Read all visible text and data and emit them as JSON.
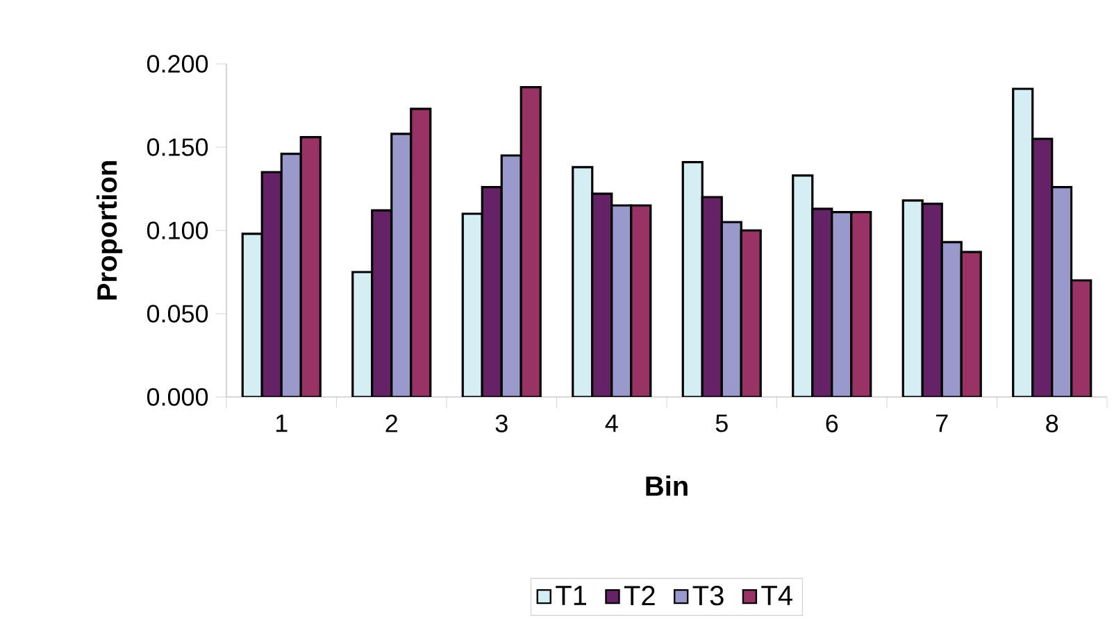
{
  "chart_data": {
    "type": "bar",
    "xlabel": "Bin",
    "ylabel": "Proportion",
    "categories": [
      "1",
      "2",
      "3",
      "4",
      "5",
      "6",
      "7",
      "8"
    ],
    "series": [
      {
        "name": "T1",
        "color": "#d4eef4",
        "values": [
          0.098,
          0.075,
          0.11,
          0.138,
          0.141,
          0.133,
          0.118,
          0.185
        ]
      },
      {
        "name": "T2",
        "color": "#662266",
        "values": [
          0.135,
          0.112,
          0.126,
          0.122,
          0.12,
          0.113,
          0.116,
          0.155
        ]
      },
      {
        "name": "T3",
        "color": "#9999cc",
        "values": [
          0.146,
          0.158,
          0.145,
          0.115,
          0.105,
          0.111,
          0.093,
          0.126
        ]
      },
      {
        "name": "T4",
        "color": "#993366",
        "values": [
          0.156,
          0.173,
          0.186,
          0.115,
          0.1,
          0.111,
          0.087,
          0.07
        ]
      }
    ],
    "ylim": [
      0,
      0.2
    ],
    "yticks": [
      {
        "value": 0,
        "label": "0.000"
      },
      {
        "value": 0.05,
        "label": "0.050"
      },
      {
        "value": 0.1,
        "label": "0.100"
      },
      {
        "value": 0.15,
        "label": "0.150"
      },
      {
        "value": 0.2,
        "label": "0.200"
      }
    ],
    "legend": "bottom",
    "grid": false
  }
}
